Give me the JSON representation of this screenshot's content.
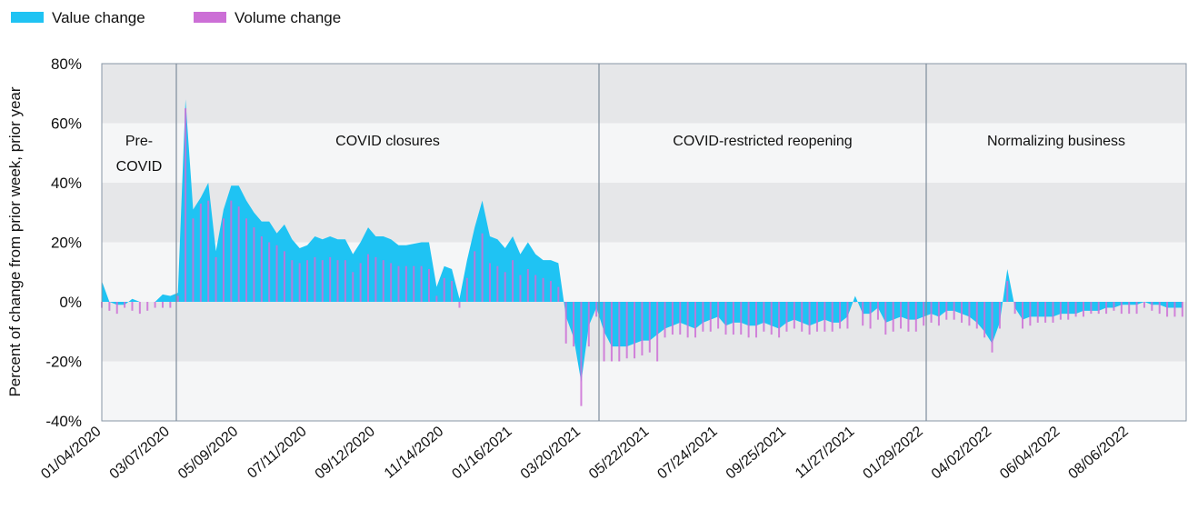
{
  "chart_data": {
    "type": "area-bar",
    "y_label": "Percent of change from prior week, prior year",
    "phases": [
      "Pre-COVID",
      "COVID closures",
      "COVID-restricted reopening",
      "Normalizing business"
    ],
    "categories": [
      "01/04/2020",
      null,
      null,
      null,
      null,
      null,
      null,
      null,
      null,
      "03/07/2020",
      null,
      null,
      null,
      null,
      null,
      null,
      null,
      null,
      "05/09/2020",
      null,
      null,
      null,
      null,
      null,
      null,
      null,
      null,
      "07/11/2020",
      null,
      null,
      null,
      null,
      null,
      null,
      null,
      null,
      "09/12/2020",
      null,
      null,
      null,
      null,
      null,
      null,
      null,
      null,
      "11/14/2020",
      null,
      null,
      null,
      null,
      null,
      null,
      null,
      null,
      "01/16/2021",
      null,
      null,
      null,
      null,
      null,
      null,
      null,
      null,
      "03/20/2021",
      null,
      null,
      null,
      null,
      null,
      null,
      null,
      null,
      "05/22/2021",
      null,
      null,
      null,
      null,
      null,
      null,
      null,
      null,
      "07/24/2021",
      null,
      null,
      null,
      null,
      null,
      null,
      null,
      null,
      "09/25/2021",
      null,
      null,
      null,
      null,
      null,
      null,
      null,
      null,
      "11/27/2021",
      null,
      null,
      null,
      null,
      null,
      null,
      null,
      null,
      "01/29/2022",
      null,
      null,
      null,
      null,
      null,
      null,
      null,
      null,
      "04/02/2022",
      null,
      null,
      null,
      null,
      null,
      null,
      null,
      null,
      "06/04/2022",
      null,
      null,
      null,
      null,
      null,
      null,
      null,
      null,
      "08/06/2022",
      null,
      null,
      null,
      null,
      null,
      null,
      null
    ],
    "series": [
      {
        "name": "Value change",
        "color": "#1fc3f3",
        "values": [
          7,
          0,
          -1,
          -1,
          1,
          0,
          0,
          0,
          2.5,
          2,
          3,
          68,
          31,
          35,
          40,
          17,
          31,
          39,
          39,
          34,
          30,
          27,
          27,
          23,
          26,
          21,
          18,
          19,
          22,
          21,
          22,
          21,
          21,
          16,
          20,
          25,
          22,
          22,
          21,
          19,
          19,
          19.5,
          20,
          20,
          5,
          12,
          11,
          1,
          14,
          25,
          34,
          22,
          21,
          18,
          22,
          16,
          20,
          16,
          14,
          14,
          13,
          -5,
          -12,
          -27,
          -8,
          -2,
          -10,
          -15,
          -15,
          -15,
          -14,
          -13,
          -13,
          -11,
          -9,
          -8,
          -7,
          -8,
          -9,
          -7,
          -6,
          -5,
          -8,
          -7,
          -7,
          -8,
          -8,
          -7,
          -8,
          -9,
          -7,
          -6,
          -7,
          -8,
          -7,
          -6,
          -7,
          -7,
          -5,
          2,
          -4,
          -4,
          -2,
          -7,
          -6,
          -5,
          -6,
          -6,
          -5,
          -4,
          -5,
          -3,
          -3,
          -4,
          -5,
          -7,
          -10,
          -14,
          -7,
          11,
          -2,
          -6,
          -5,
          -5,
          -5,
          -5,
          -4,
          -4,
          -4,
          -3,
          -3,
          -3,
          -2,
          -2,
          -1,
          -1,
          -1,
          0,
          -1,
          -1,
          -2,
          -2,
          -2
        ]
      },
      {
        "name": "Volume change",
        "color": "#cc6fd6",
        "values": [
          -2,
          -3,
          -4,
          -2,
          -3,
          -4,
          -3,
          -2,
          -2,
          -2,
          2,
          65,
          28,
          33,
          34,
          15,
          28,
          34,
          32,
          28,
          25,
          22,
          20,
          19,
          17,
          14,
          13,
          14,
          15,
          14,
          15,
          14,
          14,
          10,
          13,
          16,
          15,
          14,
          13,
          12,
          12,
          12,
          12,
          11,
          2,
          8,
          7,
          -2,
          8,
          17,
          23,
          13,
          12,
          10,
          14,
          9,
          11,
          9,
          8,
          7,
          5,
          -14,
          -15,
          -35,
          -15,
          -5,
          -20,
          -20,
          -20,
          -19,
          -19,
          -18,
          -17,
          -20,
          -12,
          -11,
          -11,
          -12,
          -12,
          -10,
          -10,
          -9,
          -11,
          -11,
          -11,
          -12,
          -12,
          -10,
          -11,
          -12,
          -10,
          -9,
          -10,
          -11,
          -10,
          -10,
          -10,
          -9,
          -9,
          0,
          -8,
          -9,
          -6,
          -11,
          -10,
          -9,
          -10,
          -10,
          -8,
          -7,
          -8,
          -6,
          -6,
          -7,
          -8,
          -9,
          -12,
          -17,
          -9,
          7,
          -4,
          -9,
          -8,
          -7,
          -7,
          -7,
          -6,
          -6,
          -5,
          -5,
          -4,
          -4,
          -4,
          -3,
          -4,
          -4,
          -4,
          -2,
          -3,
          -4,
          -5,
          -5,
          -5
        ]
      }
    ],
    "ylim": [
      -40,
      80
    ],
    "yticks": [
      {
        "value": -40,
        "label": "-40%"
      },
      {
        "value": -20,
        "label": "-20%"
      },
      {
        "value": 0,
        "label": "0%"
      },
      {
        "value": 20,
        "label": "20%"
      },
      {
        "value": 40,
        "label": "40%"
      },
      {
        "value": 60,
        "label": "60%"
      },
      {
        "value": 80,
        "label": "80%"
      }
    ],
    "bands": true
  }
}
